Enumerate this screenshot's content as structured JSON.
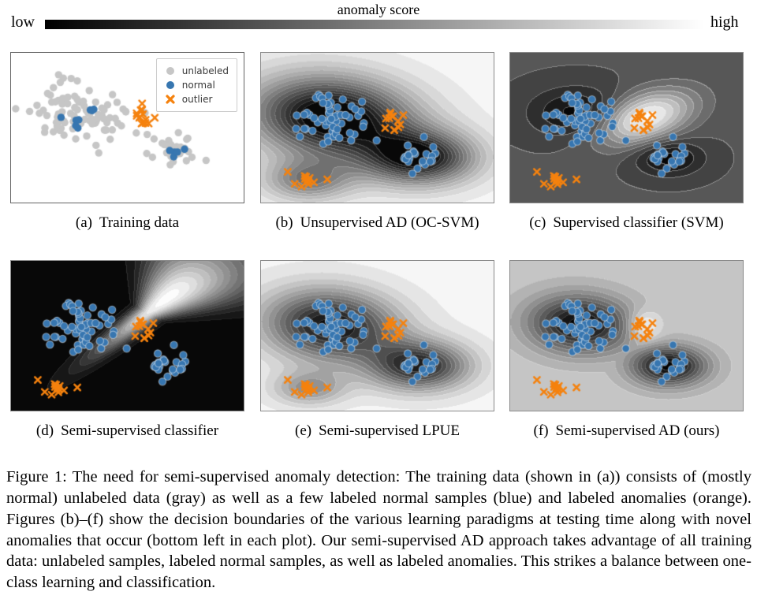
{
  "figure": {
    "colorbar": {
      "title": "anomaly score",
      "low_label": "low",
      "high_label": "high",
      "gradient_from": "#000000",
      "gradient_to": "#ffffff"
    },
    "legend": {
      "items": [
        {
          "label": "unlabeled",
          "marker": "circle",
          "color": "#c6c6c6"
        },
        {
          "label": "normal",
          "marker": "circle",
          "color": "#3776b0"
        },
        {
          "label": "outlier",
          "marker": "x",
          "color": "#f5820e"
        }
      ]
    },
    "panels": [
      {
        "id": "a",
        "label": "(a)",
        "caption": "Training data",
        "type": "scatter"
      },
      {
        "id": "b",
        "label": "(b)",
        "caption": "Unsupervised AD (OC-SVM)",
        "type": "contour",
        "field": "ocsvm"
      },
      {
        "id": "c",
        "label": "(c)",
        "caption": "Supervised classifier (SVM)",
        "type": "contour",
        "field": "svm"
      },
      {
        "id": "d",
        "label": "(d)",
        "caption": "Semi-supervised classifier",
        "type": "contour",
        "field": "ssclf"
      },
      {
        "id": "e",
        "label": "(e)",
        "caption": "Semi-supervised LPUE",
        "type": "contour",
        "field": "lpue"
      },
      {
        "id": "f",
        "label": "(f)",
        "caption": "Semi-supervised AD (ours)",
        "type": "contour",
        "field": "ssad"
      }
    ],
    "caption": "Figure 1: The need for semi-supervised anomaly detection: The training data (shown in (a)) consists of (mostly normal) unlabeled data (gray) as well as a few labeled normal samples (blue) and labeled anomalies (orange). Figures (b)–(f) show the decision boundaries of the various learning paradigms at testing time along with novel anomalies that occur (bottom left in each plot). Our semi-supervised AD approach takes advantage of all training data: unlabeled samples, labeled normal samples, as well as labeled anomalies. This strikes a balance between one-class learning and classification."
  },
  "chart_data": {
    "type": "scatter",
    "colors": {
      "unlabeled": "#c6c6c6",
      "normal": "#3776b0",
      "normal_edge": "rgba(255,255,255,0.45)",
      "outlier": "#f5820e",
      "score_low": "#000000",
      "score_high": "#ffffff"
    },
    "train_clusters": [
      {
        "role": "unlabeled",
        "cx": 0.31,
        "cy": 0.4,
        "sx": 0.115,
        "sy": 0.105,
        "n": 88,
        "seed": 11
      },
      {
        "role": "unlabeled",
        "cx": 0.7,
        "cy": 0.665,
        "sx": 0.062,
        "sy": 0.05,
        "n": 30,
        "seed": 22
      },
      {
        "role": "normal",
        "cx": 0.3,
        "cy": 0.42,
        "sx": 0.055,
        "sy": 0.05,
        "n": 8,
        "seed": 33
      },
      {
        "role": "normal",
        "cx": 0.705,
        "cy": 0.655,
        "sx": 0.028,
        "sy": 0.024,
        "n": 5,
        "seed": 44
      },
      {
        "role": "outlier",
        "cx": 0.565,
        "cy": 0.42,
        "sx": 0.022,
        "sy": 0.032,
        "n": 14,
        "seed": 55
      }
    ],
    "test_clusters": [
      {
        "role": "normal",
        "cx": 0.3,
        "cy": 0.44,
        "sx": 0.085,
        "sy": 0.075,
        "n": 60,
        "seed": 66
      },
      {
        "role": "normal",
        "cx": 0.68,
        "cy": 0.7,
        "sx": 0.055,
        "sy": 0.045,
        "n": 24,
        "seed": 77
      },
      {
        "role": "outlier",
        "cx": 0.575,
        "cy": 0.455,
        "sx": 0.018,
        "sy": 0.038,
        "n": 13,
        "seed": 88
      },
      {
        "role": "outlier",
        "cx": 0.205,
        "cy": 0.845,
        "sx": 0.02,
        "sy": 0.02,
        "n": 11,
        "seed": 99
      },
      {
        "role": "outlier",
        "points": [
          [
            0.115,
            0.795
          ],
          [
            0.145,
            0.875
          ],
          [
            0.285,
            0.845
          ]
        ]
      }
    ],
    "contour_semantics": "Grayscale background encodes anomaly score: black = low, white = high. Panels b, e: dark KDE-like region over both normal clusters; c: flat dark-gray field, black wells on normal clusters, white peak on labeled outliers; d: black field with white funnel opening to upper right around labeled outliers; f: light-gray field, black wells on normal clusters, small white peak on labeled outliers."
  }
}
